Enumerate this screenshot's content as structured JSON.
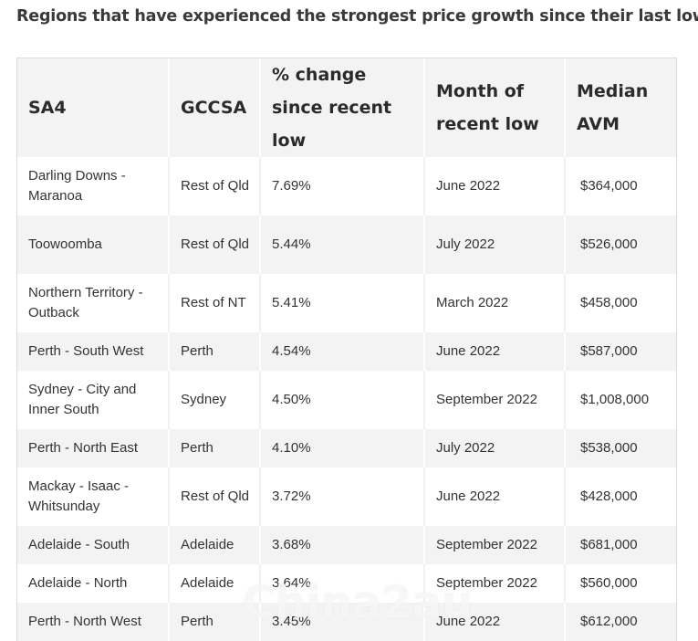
{
  "title": "Regions that have experienced the strongest price growth since their last low",
  "table": {
    "headers": [
      "SA4",
      "GCCSA",
      "% change since recent low",
      "Month of recent low",
      "Median AVM"
    ],
    "rows": [
      [
        "Darling Downs - Maranoa",
        "Rest of Qld",
        "7.69%",
        "June 2022",
        "$364,000"
      ],
      [
        "Toowoomba",
        "Rest of Qld",
        "5.44%",
        "July 2022",
        "$526,000"
      ],
      [
        "Northern Territory - Outback",
        "Rest of NT",
        "5.41%",
        "March 2022",
        "$458,000"
      ],
      [
        "Perth - South West",
        "Perth",
        "4.54%",
        "June 2022",
        "$587,000"
      ],
      [
        "Sydney - City and Inner South",
        "Sydney",
        "4.50%",
        "September 2022",
        "$1,008,000"
      ],
      [
        "Perth - North East",
        "Perth",
        "4.10%",
        "July 2022",
        "$538,000"
      ],
      [
        "Mackay - Isaac - Whitsunday",
        "Rest of Qld",
        "3.72%",
        "June 2022",
        "$428,000"
      ],
      [
        "Adelaide - South",
        "Adelaide",
        "3.68%",
        "September 2022",
        "$681,000"
      ],
      [
        "Adelaide - North",
        "Adelaide",
        "3.64%",
        "September 2022",
        "$560,000"
      ],
      [
        "Perth - North West",
        "Perth",
        "3.45%",
        "June 2022",
        "$612,000"
      ]
    ]
  },
  "watermark": "China2au"
}
